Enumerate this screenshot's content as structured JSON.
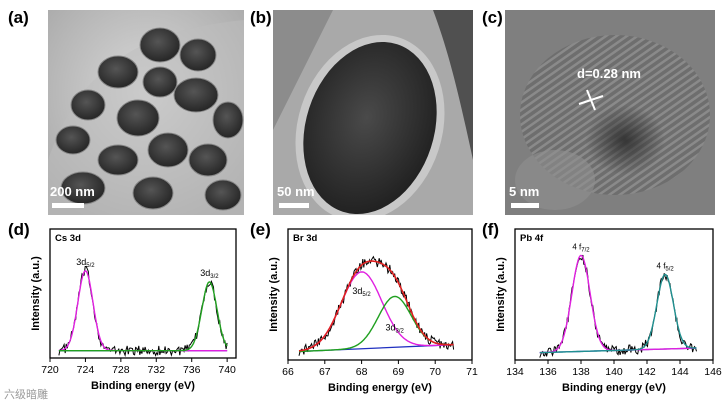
{
  "panels": {
    "a": {
      "label": "(a)",
      "scale": "200 nm"
    },
    "b": {
      "label": "(b)",
      "scale": "50 nm"
    },
    "c": {
      "label": "(c)",
      "scale": "5 nm",
      "annotation": "d=0.28 nm"
    }
  },
  "watermark": "六级暗雕",
  "chart_data": [
    {
      "panel": "(d)",
      "type": "line",
      "title": "Cs 3d",
      "xlabel": "Binding energy (eV)",
      "ylabel": "Intensity (a.u.)",
      "xlim": [
        720,
        741
      ],
      "xticks": [
        720,
        724,
        728,
        732,
        736,
        740
      ],
      "peak_labels": [
        {
          "text": "3d",
          "sub": "5/2",
          "x": 724.0
        },
        {
          "text": "3d",
          "sub": "3/2",
          "x": 738.0
        }
      ],
      "peaks": [
        {
          "center": 724.0,
          "height": 0.72,
          "width": 0.85,
          "color": "#e020e0"
        },
        {
          "center": 738.0,
          "height": 0.62,
          "width": 0.85,
          "color": "#20a020"
        }
      ],
      "baseline": [
        {
          "x": 721,
          "y": 0.03
        },
        {
          "x": 740,
          "y": 0.03
        }
      ]
    },
    {
      "panel": "(e)",
      "type": "line",
      "title": "Br 3d",
      "xlabel": "Binding energy (eV)",
      "ylabel": "Intensity (a.u.)",
      "xlim": [
        66,
        71
      ],
      "xticks": [
        66,
        67,
        68,
        69,
        70,
        71
      ],
      "peak_labels": [
        {
          "text": "3d",
          "sub": "5/2",
          "x": 68.0
        },
        {
          "text": "3d",
          "sub": "3/2",
          "x": 68.9
        }
      ],
      "peaks": [
        {
          "center": 68.0,
          "height": 0.68,
          "width": 0.55,
          "color": "#e020e0"
        },
        {
          "center": 68.9,
          "height": 0.45,
          "width": 0.45,
          "color": "#20a020"
        }
      ],
      "baseline": [
        {
          "x": 66.3,
          "y": 0.04
        },
        {
          "x": 70.5,
          "y": 0.1
        }
      ]
    },
    {
      "panel": "(f)",
      "type": "line",
      "title": "Pb 4f",
      "xlabel": "Binding energy (eV)",
      "ylabel": "Intensity (a.u.)",
      "xlim": [
        134,
        146
      ],
      "xticks": [
        134,
        136,
        138,
        140,
        142,
        144,
        146
      ],
      "peak_labels": [
        {
          "text": "4 f",
          "sub": "7/2",
          "x": 138.0
        },
        {
          "text": "4 f",
          "sub": "5/2",
          "x": 143.1
        }
      ],
      "peaks": [
        {
          "center": 138.0,
          "height": 0.85,
          "width": 0.55,
          "color": "#e020e0"
        },
        {
          "center": 143.1,
          "height": 0.66,
          "width": 0.5,
          "color": "#209090"
        }
      ],
      "baseline": [
        {
          "x": 135.5,
          "y": 0.03
        },
        {
          "x": 145,
          "y": 0.07
        }
      ]
    }
  ]
}
